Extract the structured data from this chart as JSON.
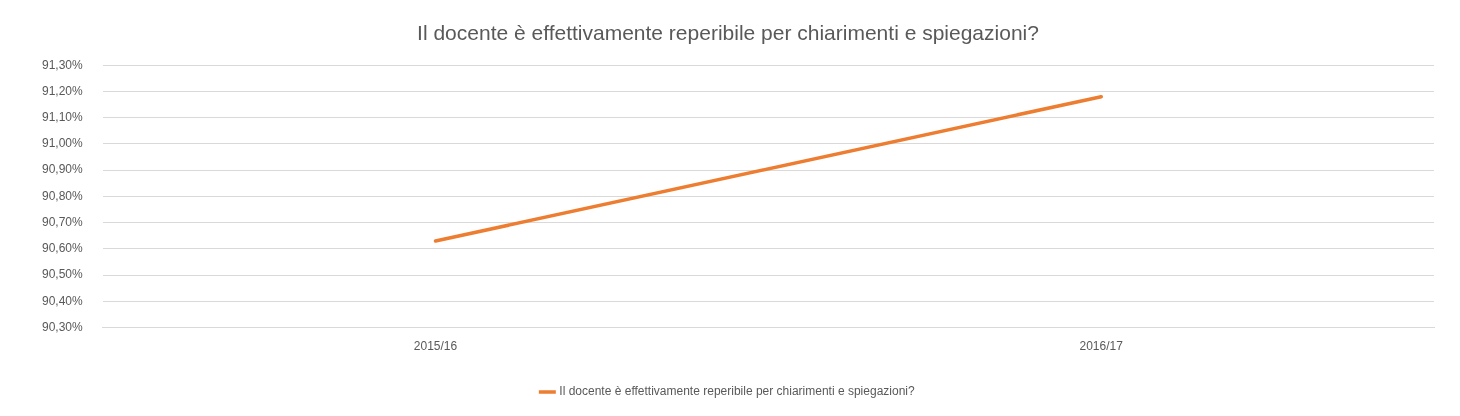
{
  "chart_data": {
    "type": "line",
    "title": "Il docente è effettivamente reperibile per chiarimenti e spiegazioni?",
    "categories": [
      "2015/16",
      "2016/17"
    ],
    "series": [
      {
        "name": "Il docente è effettivamente reperibile per chiarimenti e spiegazioni?",
        "color": "#ed7d31",
        "values": [
          90.63,
          91.18
        ]
      }
    ],
    "ylim": [
      90.3,
      91.3
    ],
    "yticks": [
      {
        "value": 90.3,
        "label": "90,30%"
      },
      {
        "value": 90.4,
        "label": "90,40%"
      },
      {
        "value": 90.5,
        "label": "90,50%"
      },
      {
        "value": 90.6,
        "label": "90,60%"
      },
      {
        "value": 90.7,
        "label": "90,70%"
      },
      {
        "value": 90.8,
        "label": "90,80%"
      },
      {
        "value": 90.9,
        "label": "90,90%"
      },
      {
        "value": 91.0,
        "label": "91,00%"
      },
      {
        "value": 91.1,
        "label": "91,10%"
      },
      {
        "value": 91.2,
        "label": "91,20%"
      },
      {
        "value": 91.3,
        "label": "91,30%"
      }
    ],
    "grid": "y",
    "legend": "bottom",
    "marker": "none",
    "line_style": "solid"
  }
}
